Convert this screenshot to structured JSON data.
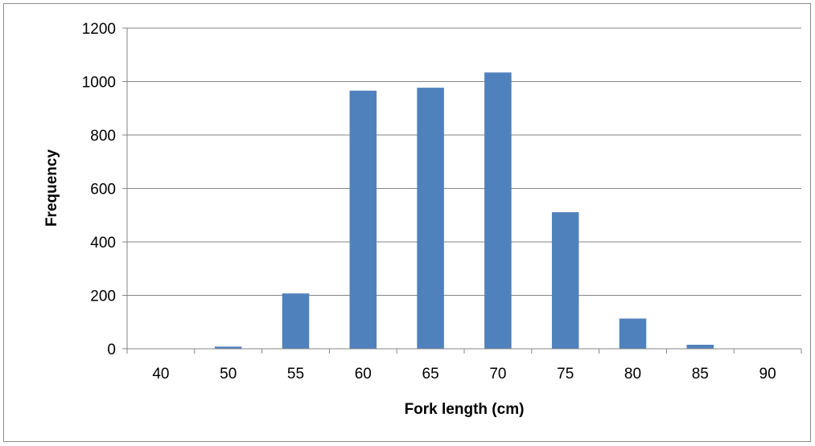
{
  "chart_data": {
    "type": "bar",
    "title": "",
    "xlabel": "Fork length (cm)",
    "ylabel": "Frequency",
    "categories": [
      "40",
      "50",
      "55",
      "60",
      "65",
      "70",
      "75",
      "80",
      "85",
      "90"
    ],
    "values": [
      0,
      8,
      207,
      966,
      977,
      1034,
      511,
      113,
      15,
      0
    ],
    "ylim": [
      0,
      1200
    ],
    "yticks": [
      "0",
      "200",
      "400",
      "600",
      "800",
      "1000",
      "1200"
    ],
    "grid": true,
    "legend": "none",
    "bar_color": "#4f81bd",
    "grid_color": "#868686"
  }
}
